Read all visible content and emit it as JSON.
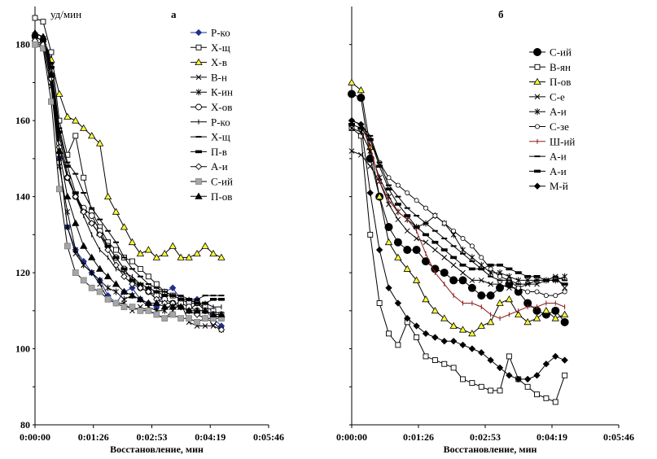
{
  "chart_data": [
    {
      "type": "line",
      "panel": "а",
      "ylabel": "уд/мин",
      "xlabel": "Восстановление, мин",
      "x_ticks": [
        "0:00:00",
        "0:01:26",
        "0:02:53",
        "0:04:19",
        "0:05:46"
      ],
      "y_ticks": [
        "80",
        "100",
        "120",
        "140",
        "160",
        "180"
      ],
      "xlim": [
        0,
        346
      ],
      "ylim": [
        80,
        190
      ],
      "grid": false,
      "legend_position": "right",
      "x": [
        0,
        12,
        24,
        36,
        48,
        60,
        72,
        84,
        96,
        108,
        120,
        132,
        144,
        156,
        168,
        180,
        192,
        204,
        216,
        228,
        240,
        252,
        264,
        276
      ],
      "series": [
        {
          "name": "Р-ко",
          "color": "#1f2f8f",
          "marker": "diamond-filled",
          "dash": "",
          "values": [
            181,
            180,
            172,
            150,
            132,
            126,
            123,
            120,
            118,
            114,
            112,
            115,
            116,
            113,
            112,
            111,
            115,
            116,
            113,
            112,
            113,
            110,
            108,
            106
          ]
        },
        {
          "name": "Х-щ",
          "color": "#000000",
          "marker": "square-open",
          "dash": "",
          "values": [
            187,
            186,
            178,
            160,
            151,
            156,
            145,
            136,
            132,
            128,
            126,
            124,
            123,
            121,
            119,
            117,
            115,
            114,
            113,
            112,
            112,
            111,
            110,
            109
          ]
        },
        {
          "name": "Х-в",
          "color": "#000000",
          "marker": "triangle-yellow",
          "dash": "",
          "values": [
            183,
            182,
            176,
            167,
            161,
            160,
            158,
            156,
            154,
            140,
            136,
            132,
            128,
            125,
            126,
            124,
            125,
            127,
            124,
            124,
            125,
            127,
            125,
            124
          ]
        },
        {
          "name": "В-н",
          "color": "#000000",
          "marker": "x",
          "dash": "",
          "values": [
            182,
            181,
            170,
            150,
            132,
            125,
            122,
            120,
            117,
            113,
            112,
            112,
            110,
            111,
            110,
            109,
            108,
            110,
            112,
            107,
            106,
            106,
            106,
            105
          ]
        },
        {
          "name": "К-ин",
          "color": "#000000",
          "marker": "star",
          "dash": "",
          "values": [
            181,
            179,
            169,
            148,
            136,
            126,
            122,
            120,
            118,
            116,
            115,
            113,
            114,
            113,
            111,
            110,
            110,
            112,
            111,
            110,
            112,
            110,
            109,
            108
          ]
        },
        {
          "name": "Х-ов",
          "color": "#000000",
          "marker": "circle-open",
          "dash": "",
          "values": [
            182,
            181,
            173,
            154,
            145,
            140,
            137,
            135,
            131,
            127,
            124,
            121,
            118,
            116,
            115,
            114,
            113,
            112,
            112,
            111,
            110,
            110,
            109,
            108
          ]
        },
        {
          "name": "Р-ко",
          "color": "#000000",
          "marker": "plus",
          "dash": "",
          "values": [
            183,
            182,
            174,
            156,
            146,
            140,
            135,
            130,
            126,
            124,
            121,
            120,
            119,
            117,
            116,
            115,
            115,
            114,
            113,
            113,
            112,
            112,
            111,
            111
          ]
        },
        {
          "name": "Х-щ",
          "color": "#000000",
          "marker": "dash",
          "dash": "",
          "values": [
            183,
            182,
            175,
            158,
            149,
            146,
            141,
            137,
            134,
            131,
            128,
            124,
            121,
            119,
            117,
            116,
            115,
            114,
            114,
            113,
            113,
            114,
            114,
            114
          ]
        },
        {
          "name": "П-в",
          "color": "#000000",
          "marker": "dash-thick",
          "dash": "",
          "values": [
            182,
            181,
            174,
            157,
            148,
            141,
            136,
            133,
            130,
            127,
            124,
            121,
            118,
            117,
            116,
            115,
            114,
            114,
            113,
            113,
            112,
            112,
            113,
            113
          ]
        },
        {
          "name": "А-и",
          "color": "#000000",
          "marker": "diamond-open",
          "dash": "",
          "values": [
            181,
            180,
            171,
            153,
            145,
            140,
            136,
            133,
            130,
            126,
            122,
            119,
            117,
            116,
            115,
            113,
            112,
            112,
            111,
            110,
            109,
            108,
            107,
            105
          ]
        },
        {
          "name": "С-ий",
          "color": "#000000",
          "marker": "square-gray",
          "dash": "",
          "values": [
            180,
            179,
            165,
            142,
            127,
            120,
            118,
            116,
            115,
            113,
            112,
            111,
            111,
            110,
            110,
            109,
            108,
            109,
            108,
            108,
            107,
            108,
            108,
            108
          ]
        },
        {
          "name": "П-ов",
          "color": "#000000",
          "marker": "triangle-filled",
          "dash": "",
          "values": [
            183,
            182,
            172,
            152,
            140,
            133,
            127,
            124,
            121,
            119,
            117,
            115,
            114,
            113,
            112,
            112,
            111,
            111,
            111,
            110,
            110,
            110,
            109,
            109
          ]
        }
      ]
    },
    {
      "type": "line",
      "panel": "б",
      "ylabel": "",
      "xlabel": "Восстановление, мин",
      "x_ticks": [
        "0:00:00",
        "0:01:26",
        "0:02:53",
        "0:04:19",
        "0:05:46"
      ],
      "y_ticks": [],
      "xlim": [
        0,
        346
      ],
      "ylim": [
        80,
        190
      ],
      "grid": false,
      "legend_position": "right",
      "x": [
        0,
        12,
        24,
        36,
        48,
        60,
        72,
        84,
        96,
        108,
        120,
        132,
        144,
        156,
        168,
        180,
        192,
        204,
        216,
        228,
        240,
        252,
        264,
        276
      ],
      "series": [
        {
          "name": "С-ий",
          "color": "#000000",
          "marker": "circle-filled-big",
          "dash": "",
          "values": [
            167,
            166,
            150,
            140,
            132,
            128,
            126,
            126,
            123,
            121,
            120,
            118,
            118,
            116,
            114,
            114,
            116,
            117,
            115,
            112,
            110,
            109,
            110,
            107
          ]
        },
        {
          "name": "В-ян",
          "color": "#000000",
          "marker": "square-open",
          "dash": "",
          "values": [
            158,
            156,
            130,
            112,
            104,
            101,
            107,
            103,
            98,
            97,
            96,
            95,
            92,
            91,
            90,
            89,
            89,
            98,
            92,
            90,
            88,
            87,
            86,
            93
          ]
        },
        {
          "name": "П-ов",
          "color": "#000000",
          "marker": "triangle-yellow",
          "dash": "",
          "values": [
            170,
            168,
            153,
            140,
            128,
            124,
            121,
            118,
            113,
            110,
            108,
            106,
            105,
            104,
            106,
            107,
            112,
            113,
            109,
            107,
            108,
            110,
            108,
            109
          ]
        },
        {
          "name": "С-е",
          "color": "#000000",
          "marker": "x",
          "dash": "",
          "values": [
            152,
            151,
            148,
            144,
            138,
            134,
            131,
            129,
            128,
            126,
            124,
            122,
            120,
            118,
            118,
            117,
            117,
            116,
            116,
            117,
            117,
            118,
            119,
            116
          ]
        },
        {
          "name": "А-и",
          "color": "#000000",
          "marker": "star",
          "dash": "",
          "values": [
            158,
            157,
            152,
            145,
            140,
            136,
            134,
            132,
            133,
            135,
            133,
            130,
            126,
            124,
            122,
            120,
            120,
            119,
            118,
            118,
            118,
            118,
            118,
            119
          ]
        },
        {
          "name": "С-зе",
          "color": "#000000",
          "marker": "circle-open-small",
          "dash": "",
          "values": [
            160,
            159,
            155,
            149,
            145,
            143,
            141,
            139,
            137,
            135,
            133,
            131,
            129,
            127,
            124,
            121,
            119,
            118,
            116,
            115,
            115,
            114,
            114,
            115
          ]
        },
        {
          "name": "Ш-ий",
          "color": "#8b1a1a",
          "marker": "plus",
          "dash": "",
          "values": [
            160,
            159,
            153,
            144,
            139,
            136,
            134,
            131,
            125,
            120,
            117,
            114,
            112,
            112,
            111,
            109,
            108,
            109,
            110,
            111,
            111,
            112,
            112,
            111
          ]
        },
        {
          "name": "А-и",
          "color": "#000000",
          "marker": "dash",
          "dash": "",
          "values": [
            160,
            159,
            156,
            149,
            143,
            140,
            137,
            135,
            133,
            131,
            129,
            127,
            125,
            123,
            121,
            119,
            118,
            118,
            117,
            117,
            118,
            118,
            119,
            118
          ]
        },
        {
          "name": "А-и",
          "color": "#000000",
          "marker": "dash-thick",
          "dash": "",
          "values": [
            159,
            158,
            155,
            148,
            142,
            138,
            135,
            132,
            130,
            128,
            126,
            124,
            122,
            121,
            121,
            122,
            122,
            121,
            120,
            119,
            119,
            118,
            118,
            117
          ]
        },
        {
          "name": "М-й",
          "color": "#000000",
          "marker": "diamond-filled",
          "dash": "",
          "values": [
            160,
            159,
            141,
            126,
            116,
            112,
            108,
            106,
            104,
            103,
            102,
            102,
            101,
            100,
            99,
            97,
            95,
            93,
            92,
            92,
            93,
            96,
            98,
            97
          ]
        }
      ]
    }
  ]
}
